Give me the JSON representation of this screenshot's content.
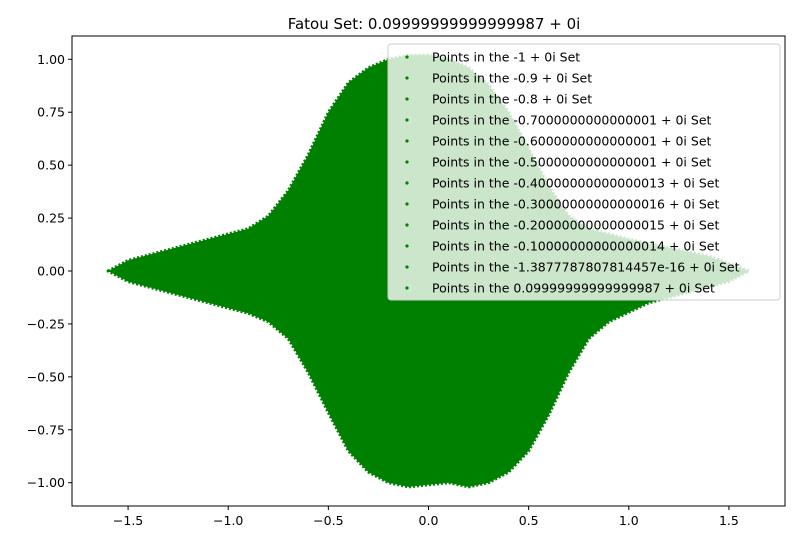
{
  "chart_data": {
    "type": "scatter",
    "title": "Fatou Set: 0.09999999999999987 + 0i",
    "xlabel": "",
    "ylabel": "",
    "xlim": [
      -1.78,
      1.78
    ],
    "ylim": [
      -1.11,
      1.11
    ],
    "x_ticks": [
      -1.5,
      -1.0,
      -0.5,
      0.0,
      0.5,
      1.0,
      1.5
    ],
    "x_tick_labels": [
      "−1.5",
      "−1.0",
      "−0.5",
      "0.0",
      "0.5",
      "1.0",
      "1.5"
    ],
    "y_ticks": [
      1.0,
      0.75,
      0.5,
      0.25,
      0.0,
      -0.25,
      -0.5,
      -0.75,
      -1.0
    ],
    "y_tick_labels": [
      "1.00",
      "0.75",
      "0.50",
      "0.25",
      "0.00",
      "−0.25",
      "−0.50",
      "−0.75",
      "−1.00"
    ],
    "grid": false,
    "legend_position": "top-right",
    "marker_color": "#008000",
    "region_outline": {
      "upper": [
        {
          "x": -1.6,
          "y": 0.0
        },
        {
          "x": -1.5,
          "y": 0.05
        },
        {
          "x": -1.3,
          "y": 0.1
        },
        {
          "x": -1.1,
          "y": 0.15
        },
        {
          "x": -0.9,
          "y": 0.2
        },
        {
          "x": -0.8,
          "y": 0.26
        },
        {
          "x": -0.7,
          "y": 0.38
        },
        {
          "x": -0.6,
          "y": 0.55
        },
        {
          "x": -0.5,
          "y": 0.75
        },
        {
          "x": -0.4,
          "y": 0.89
        },
        {
          "x": -0.3,
          "y": 0.96
        },
        {
          "x": -0.2,
          "y": 1.0
        },
        {
          "x": -0.1,
          "y": 1.02
        },
        {
          "x": 0.0,
          "y": 1.02
        },
        {
          "x": 0.1,
          "y": 1.0
        },
        {
          "x": 0.2,
          "y": 0.96
        },
        {
          "x": 0.3,
          "y": 0.88
        },
        {
          "x": 0.4,
          "y": 0.75
        },
        {
          "x": 0.5,
          "y": 0.58
        },
        {
          "x": 0.6,
          "y": 0.4
        },
        {
          "x": 0.7,
          "y": 0.26
        },
        {
          "x": 0.8,
          "y": 0.2
        },
        {
          "x": 1.0,
          "y": 0.15
        },
        {
          "x": 1.2,
          "y": 0.11
        },
        {
          "x": 1.4,
          "y": 0.07
        },
        {
          "x": 1.6,
          "y": 0.0
        }
      ],
      "lower": [
        {
          "x": -1.6,
          "y": 0.0
        },
        {
          "x": -1.5,
          "y": -0.05
        },
        {
          "x": -1.3,
          "y": -0.1
        },
        {
          "x": -1.1,
          "y": -0.15
        },
        {
          "x": -0.9,
          "y": -0.2
        },
        {
          "x": -0.8,
          "y": -0.24
        },
        {
          "x": -0.7,
          "y": -0.32
        },
        {
          "x": -0.6,
          "y": -0.48
        },
        {
          "x": -0.5,
          "y": -0.67
        },
        {
          "x": -0.4,
          "y": -0.85
        },
        {
          "x": -0.3,
          "y": -0.95
        },
        {
          "x": -0.2,
          "y": -1.0
        },
        {
          "x": -0.1,
          "y": -1.02
        },
        {
          "x": 0.0,
          "y": -1.01
        },
        {
          "x": 0.1,
          "y": -1.0
        },
        {
          "x": 0.2,
          "y": -1.02
        },
        {
          "x": 0.3,
          "y": -1.0
        },
        {
          "x": 0.4,
          "y": -0.95
        },
        {
          "x": 0.5,
          "y": -0.85
        },
        {
          "x": 0.6,
          "y": -0.68
        },
        {
          "x": 0.7,
          "y": -0.48
        },
        {
          "x": 0.8,
          "y": -0.32
        },
        {
          "x": 0.9,
          "y": -0.24
        },
        {
          "x": 1.1,
          "y": -0.15
        },
        {
          "x": 1.3,
          "y": -0.1
        },
        {
          "x": 1.5,
          "y": -0.05
        },
        {
          "x": 1.6,
          "y": 0.0
        }
      ]
    },
    "series": [
      {
        "name": "Points in the -1 + 0i Set"
      },
      {
        "name": "Points in the -0.9 + 0i Set"
      },
      {
        "name": "Points in the -0.8 + 0i Set"
      },
      {
        "name": "Points in the -0.7000000000000001 + 0i Set"
      },
      {
        "name": "Points in the -0.6000000000000001 + 0i Set"
      },
      {
        "name": "Points in the -0.5000000000000001 + 0i Set"
      },
      {
        "name": "Points in the -0.40000000000000013 + 0i Set"
      },
      {
        "name": "Points in the -0.30000000000000016 + 0i Set"
      },
      {
        "name": "Points in the -0.20000000000000015 + 0i Set"
      },
      {
        "name": "Points in the -0.10000000000000014 + 0i Set"
      },
      {
        "name": "Points in the -1.3877787807814457e-16 + 0i Set"
      },
      {
        "name": "Points in the 0.09999999999999987 + 0i Set"
      }
    ]
  }
}
